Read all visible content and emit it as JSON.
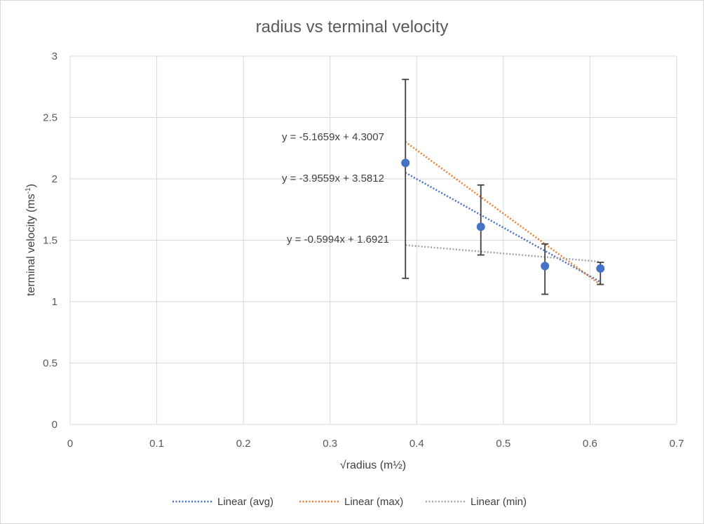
{
  "chart_data": {
    "type": "scatter",
    "title": "radius vs terminal velocity",
    "xlabel": "√radius (m½)",
    "ylabel_main": "terminal velocity (ms",
    "ylabel_sup": "-1",
    "ylabel_close": ")",
    "xlim": [
      0,
      0.7
    ],
    "ylim": [
      0,
      3
    ],
    "x_ticks": [
      0,
      0.1,
      0.2,
      0.3,
      0.4,
      0.5,
      0.6,
      0.7
    ],
    "x_tick_labels": [
      "0",
      "0.1",
      "0.2",
      "0.3",
      "0.4",
      "0.5",
      "0.6",
      "0.7"
    ],
    "y_ticks": [
      0,
      0.5,
      1,
      1.5,
      2,
      2.5,
      3
    ],
    "y_tick_labels": [
      "0",
      "0.5",
      "1",
      "1.5",
      "2",
      "2.5",
      "3"
    ],
    "grid": true,
    "point_color": "#4472c4",
    "errorbar_color": "#404040",
    "points": [
      {
        "x": 0.387,
        "y": 2.13,
        "y_low": 1.19,
        "y_high": 2.81
      },
      {
        "x": 0.474,
        "y": 1.61,
        "y_low": 1.38,
        "y_high": 1.95
      },
      {
        "x": 0.548,
        "y": 1.29,
        "y_low": 1.06,
        "y_high": 1.47
      },
      {
        "x": 0.612,
        "y": 1.27,
        "y_low": 1.14,
        "y_high": 1.32
      }
    ],
    "trendlines": [
      {
        "name": "Linear (avg)",
        "slope": -3.9559,
        "intercept": 3.5812,
        "equation": "y = -3.9559x + 3.5812",
        "color": "#4472c4"
      },
      {
        "name": "Linear (max)",
        "slope": -5.1659,
        "intercept": 4.3007,
        "equation": "y = -5.1659x + 4.3007",
        "color": "#ed7d31"
      },
      {
        "name": "Linear (min)",
        "slope": -0.5994,
        "intercept": 1.6921,
        "equation": "y = -0.5994x + 1.6921",
        "color": "#a5a5a5"
      }
    ],
    "trend_x_range": [
      0.387,
      0.612
    ],
    "legend_position": "bottom"
  }
}
